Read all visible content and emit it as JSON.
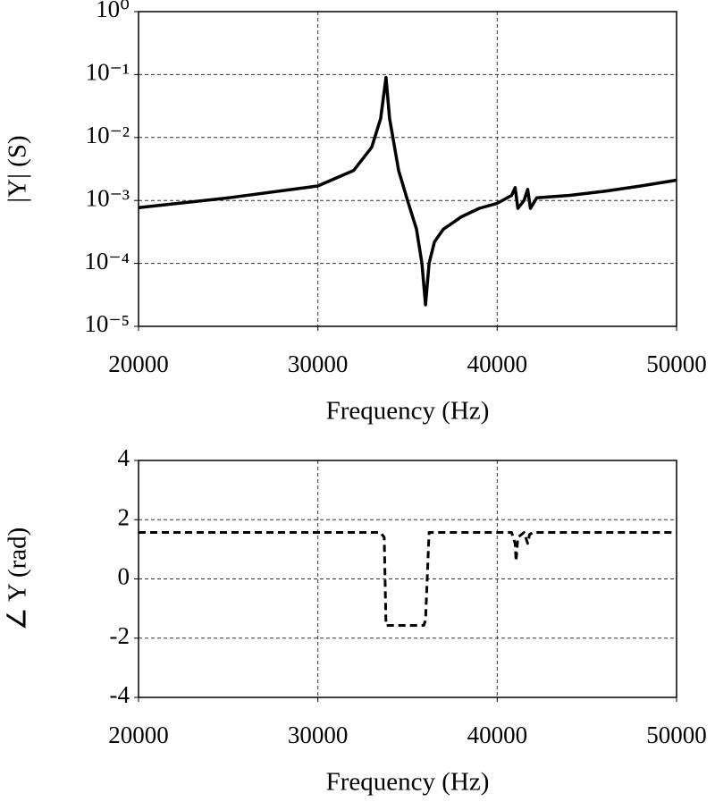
{
  "chart_data": [
    {
      "type": "line",
      "ylabel": "|Y| (S)",
      "xlabel": "Frequency (Hz)",
      "log_y": true,
      "grid": true,
      "color": "#000000",
      "line_style": "solid",
      "x": [
        20000,
        25000,
        30000,
        32000,
        33000,
        33500,
        33800,
        34000,
        34500,
        35000,
        35500,
        35800,
        36000,
        36200,
        36500,
        37000,
        38000,
        39000,
        40000,
        40800,
        41000,
        41150,
        41500,
        41700,
        41850,
        42200,
        44000,
        46000,
        48000,
        50000
      ],
      "values": [
        0.00077,
        0.0011,
        0.0017,
        0.003,
        0.007,
        0.02,
        0.09,
        0.02,
        0.003,
        0.001,
        0.00035,
        0.0001,
        2.2e-05,
        0.0001,
        0.00022,
        0.00035,
        0.00055,
        0.00075,
        0.0009,
        0.0012,
        0.0016,
        0.00075,
        0.001,
        0.0015,
        0.00075,
        0.0011,
        0.0012,
        0.0014,
        0.0017,
        0.0021
      ],
      "xlim": [
        20000,
        50000
      ],
      "xticks": [
        20000,
        30000,
        40000,
        50000
      ],
      "ylim": [
        1e-05,
        1
      ],
      "yticks": [
        {
          "value": 1,
          "label": "10⁰"
        },
        {
          "value": 0.1,
          "label": "10⁻¹"
        },
        {
          "value": 0.01,
          "label": "10⁻²"
        },
        {
          "value": 0.001,
          "label": "10⁻³"
        },
        {
          "value": 0.0001,
          "label": "10⁻⁴"
        },
        {
          "value": 1e-05,
          "label": "10⁻⁵"
        }
      ]
    },
    {
      "type": "line",
      "ylabel": "∠ Y (rad)",
      "xlabel": "Frequency (Hz)",
      "log_y": false,
      "grid": true,
      "color": "#000000",
      "line_style": "dashed",
      "x": [
        20000,
        33500,
        33700,
        33800,
        35900,
        36000,
        36200,
        40800,
        41000,
        41050,
        41150,
        41500,
        41700,
        41800,
        42000,
        50000
      ],
      "values": [
        1.57,
        1.57,
        1.4,
        -1.57,
        -1.57,
        -1.4,
        1.57,
        1.57,
        1.2,
        0.6,
        1.4,
        1.57,
        1.2,
        1.5,
        1.57,
        1.57
      ],
      "xlim": [
        20000,
        50000
      ],
      "xticks": [
        20000,
        30000,
        40000,
        50000
      ],
      "ylim": [
        -4,
        4
      ],
      "yticks": [
        -4,
        -2,
        0,
        2,
        4
      ]
    }
  ]
}
